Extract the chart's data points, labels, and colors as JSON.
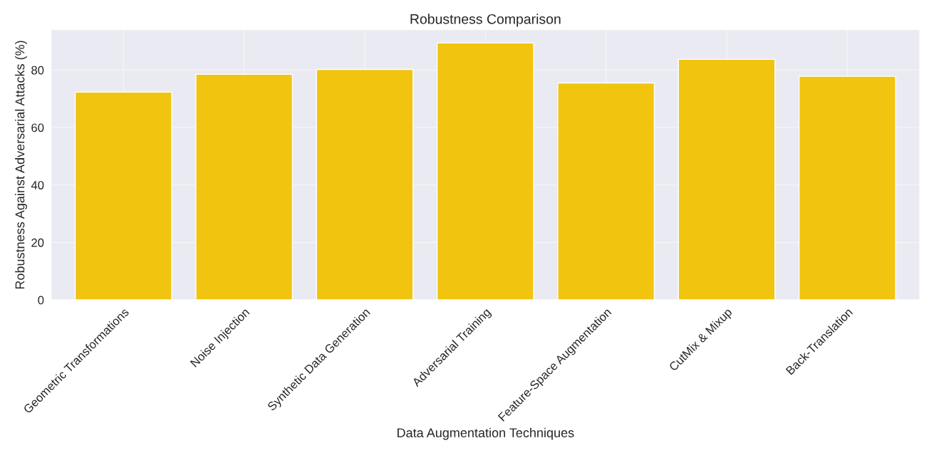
{
  "chart_data": {
    "type": "bar",
    "title": "Robustness Comparison",
    "xlabel": "Data Augmentation Techniques",
    "ylabel": "Robustness Against Adversarial Attacks (%)",
    "categories": [
      "Geometric Transformations",
      "Noise Injection",
      "Synthetic Data Generation",
      "Adversarial Training",
      "Feature-Space Augmentation",
      "CutMix & Mixup",
      "Back-Translation"
    ],
    "values": [
      72.3,
      78.5,
      80.2,
      89.4,
      75.5,
      83.7,
      77.8
    ],
    "color": "#f1c40f",
    "ylim": [
      0,
      94
    ],
    "yticks": [
      0,
      20,
      40,
      60,
      80
    ],
    "grid": true
  }
}
